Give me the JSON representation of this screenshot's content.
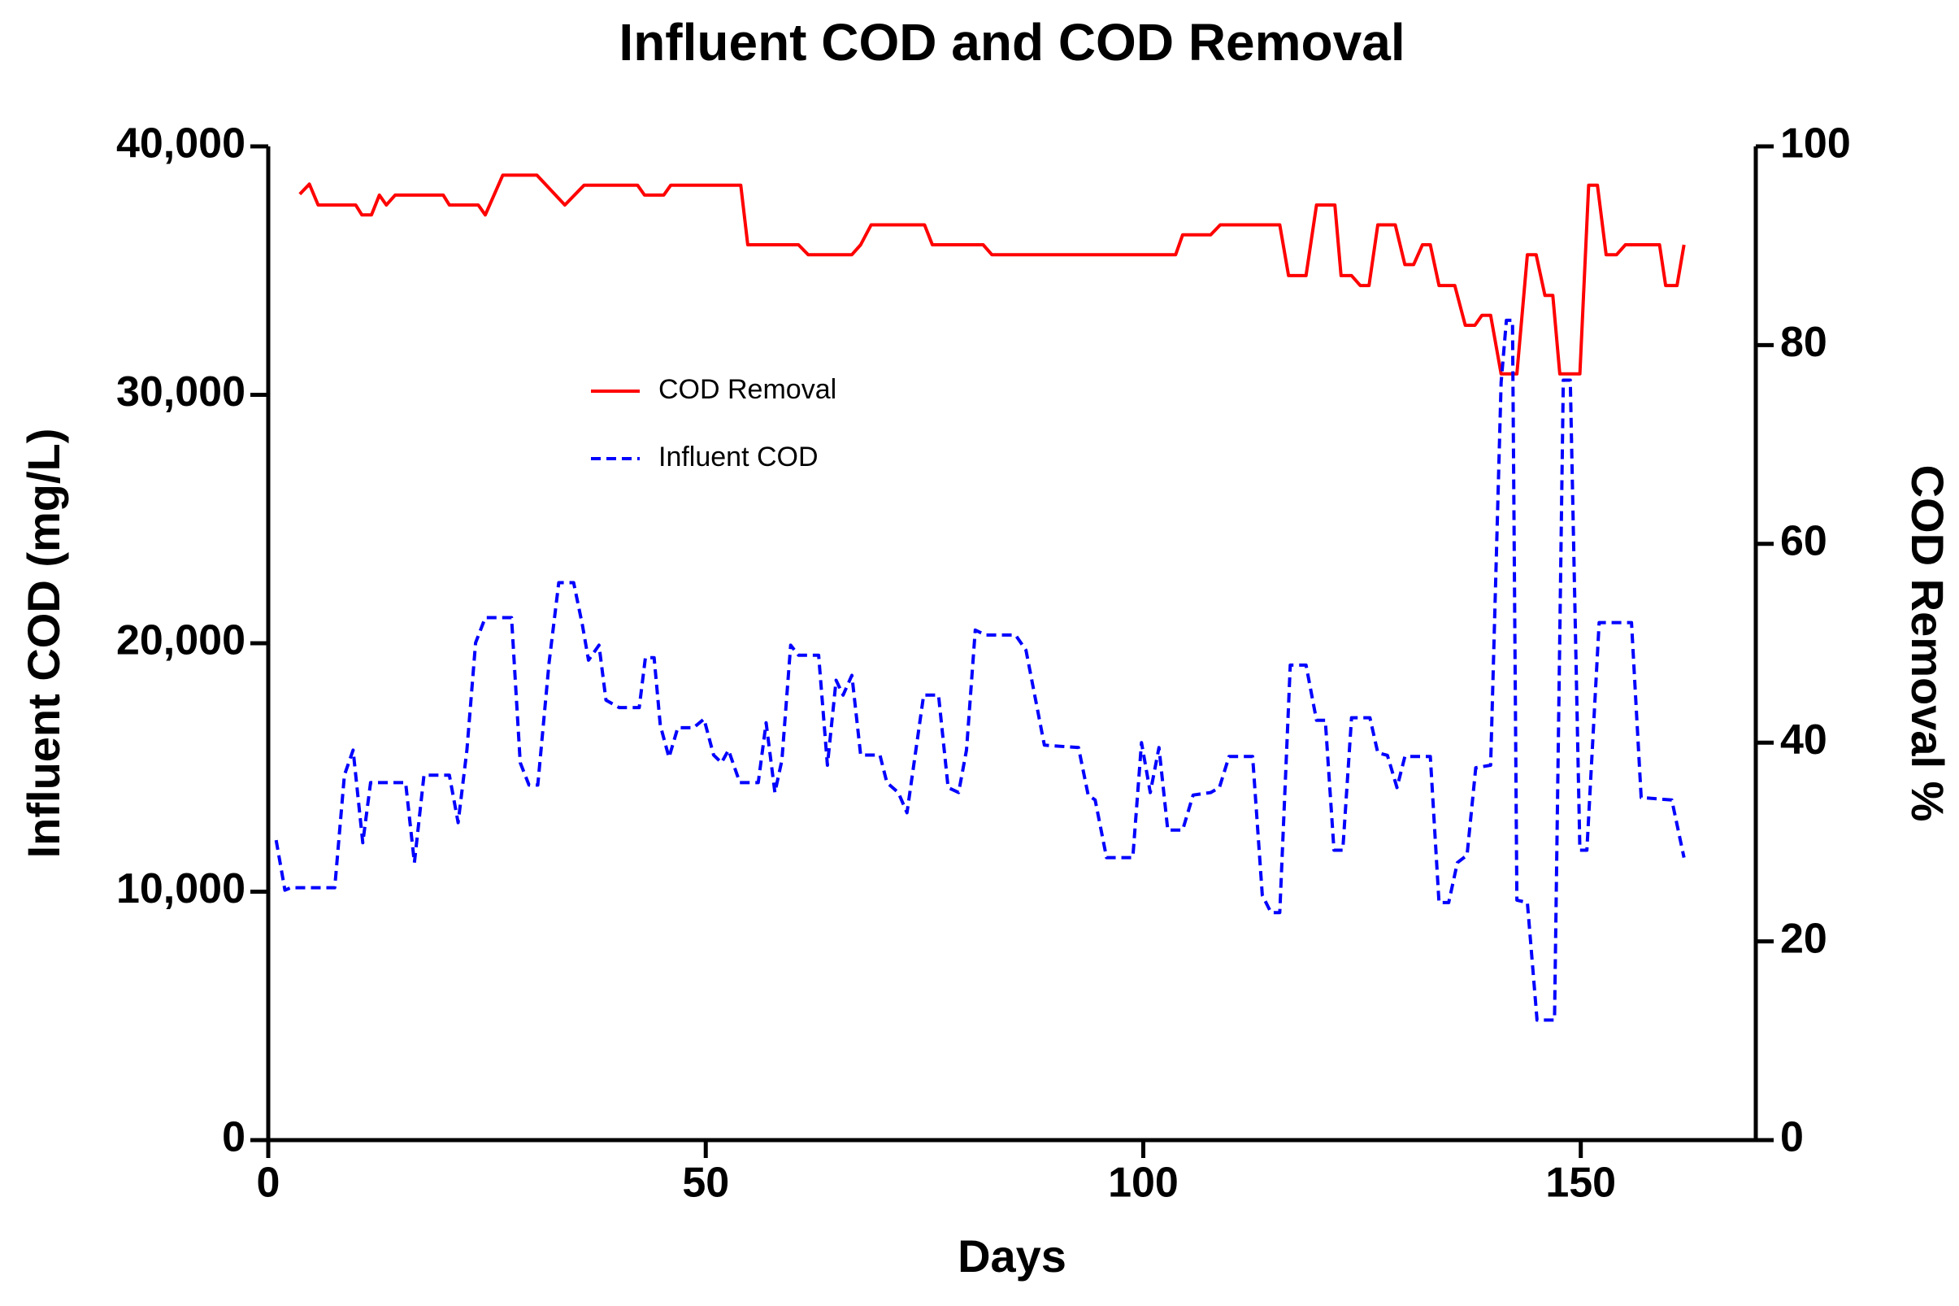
{
  "chart_data": {
    "type": "line",
    "title": "Influent COD and COD Removal",
    "x_label": "Days",
    "y_label": "Influent COD (mg/L)",
    "y2_label": "COD Removal %",
    "xlim": [
      0,
      170
    ],
    "xticks": [
      0,
      50,
      100,
      150
    ],
    "ylim": [
      0,
      40000
    ],
    "yticks": [
      0,
      {
        "value": 10000,
        "label": "10,000"
      },
      {
        "value": 20000,
        "label": "20,000"
      },
      {
        "value": 30000,
        "label": "30,000"
      },
      {
        "value": 40000,
        "label": "40,000"
      }
    ],
    "y2lim": [
      0,
      100
    ],
    "y2ticks": [
      0,
      20,
      40,
      60,
      80,
      100
    ],
    "grid": false,
    "legend": "upper left",
    "series": [
      {
        "name": "COD Removal",
        "color": "#ff0000",
        "dash": "solid",
        "axis": "y2",
        "x": [
          3.6,
          4.7,
          5.7,
          10,
          10.7,
          11.8,
          12.7,
          13.5,
          14.5,
          20,
          20.7,
          24,
          24.8,
          26.8,
          30.7,
          33.9,
          36.1,
          42.2,
          43,
          45.2,
          46,
          54,
          54.8,
          60.6,
          61.7,
          66.7,
          67.7,
          68.9,
          75,
          75.9,
          81.7,
          82.7,
          103.7,
          104.5,
          107.7,
          108.8,
          115.6,
          116.6,
          118.6,
          119.8,
          121.9,
          122.6,
          123.8,
          124.8,
          125.8,
          126.8,
          128.8,
          129.9,
          130.9,
          131.9,
          132.8,
          133.8,
          135.6,
          136.8,
          137.9,
          138.7,
          139.7,
          140.9,
          142.7,
          143.9,
          144.9,
          145.9,
          146.8,
          147.6,
          149.9,
          150.9,
          151.9,
          152.9,
          154.1,
          155.1,
          159,
          159.7,
          161,
          161.8
        ],
        "values": [
          95.2,
          96.2,
          94.1,
          94.1,
          93.1,
          93.1,
          95.1,
          94.1,
          95.1,
          95.1,
          94.1,
          94.1,
          93.1,
          97.1,
          97.1,
          94.1,
          96.1,
          96.1,
          95.1,
          95.1,
          96.1,
          96.1,
          90.1,
          90.1,
          89.1,
          89.1,
          90.1,
          92.1,
          92.1,
          90.1,
          90.1,
          89.1,
          89.1,
          91.1,
          91.1,
          92.1,
          92.1,
          87,
          87,
          94.1,
          94.1,
          87,
          87,
          86,
          86,
          92.1,
          92.1,
          88.1,
          88.1,
          90.1,
          90.1,
          86,
          86,
          82,
          82,
          83,
          83,
          77.1,
          77.1,
          89.1,
          89.1,
          85,
          85,
          77.1,
          77.1,
          96.1,
          96.1,
          89.1,
          89.1,
          90.1,
          90.1,
          86,
          86,
          90.1
        ]
      },
      {
        "name": "Influent COD",
        "color": "#0000ff",
        "dash": "dashed",
        "axis": "y",
        "x": [
          0.9,
          1.9,
          2.6,
          7.6,
          8.7,
          9.7,
          10.8,
          11.7,
          15.7,
          16.7,
          17.8,
          20.7,
          21.7,
          22.7,
          23.7,
          24.8,
          27.8,
          28.8,
          29.8,
          30.8,
          32.1,
          33.2,
          34.9,
          35.9,
          36.6,
          37.8,
          38.6,
          40.1,
          42.4,
          43.1,
          44.1,
          44.8,
          45.8,
          46.8,
          48.6,
          49.8,
          50.9,
          51.8,
          52.6,
          53.9,
          56,
          56.9,
          57.9,
          58.7,
          59.7,
          60.6,
          62.9,
          63.9,
          64.9,
          65.7,
          66.7,
          67.7,
          69.9,
          70.7,
          72,
          73,
          74.9,
          76.6,
          77.7,
          78.9,
          79.8,
          80.8,
          82,
          85.4,
          86.6,
          88.7,
          92.6,
          93.7,
          94.5,
          95.8,
          98.8,
          99.8,
          100.8,
          101.8,
          102.8,
          104.5,
          105.7,
          107.7,
          108.7,
          109.8,
          112.5,
          113.6,
          114.6,
          115.6,
          116.8,
          118.6,
          119.8,
          120.8,
          121.8,
          122.8,
          123.8,
          125.9,
          126.8,
          127.9,
          129,
          129.9,
          132.8,
          133.8,
          134.9,
          135.9,
          137,
          138,
          139.7,
          140.9,
          141.5,
          142.2,
          142.7,
          143.9,
          145,
          147,
          148,
          148.8,
          149.9,
          150.7,
          152.1,
          155.8,
          156.9,
          160.4,
          161.8
        ],
        "values": [
          12075,
          10062,
          10160,
          10160,
          14690,
          15700,
          11970,
          14390,
          14390,
          11170,
          14690,
          14690,
          12780,
          15700,
          20020,
          21030,
          21030,
          15190,
          14290,
          14290,
          19220,
          22440,
          22440,
          20730,
          19320,
          19920,
          17710,
          17410,
          17410,
          19420,
          19420,
          16700,
          15400,
          16600,
          16600,
          16950,
          15500,
          15190,
          15700,
          14390,
          14390,
          16800,
          13990,
          15290,
          19920,
          19520,
          19520,
          15090,
          18510,
          17910,
          18710,
          15500,
          15500,
          14390,
          13990,
          13180,
          17910,
          17910,
          14190,
          13990,
          15700,
          20530,
          20330,
          20330,
          19720,
          15900,
          15800,
          13890,
          13690,
          11370,
          11370,
          16000,
          13990,
          15800,
          12480,
          12480,
          13890,
          13990,
          14190,
          15440,
          15440,
          9860,
          9160,
          9160,
          19120,
          19120,
          16900,
          16900,
          11670,
          11670,
          17000,
          17000,
          15590,
          15490,
          14190,
          15440,
          15440,
          9560,
          9560,
          11170,
          11470,
          14990,
          15090,
          30490,
          33000,
          33000,
          9660,
          9560,
          4830,
          4830,
          30590,
          30590,
          11670,
          11670,
          20830,
          20830,
          13790,
          13690,
          11370
        ]
      }
    ]
  }
}
